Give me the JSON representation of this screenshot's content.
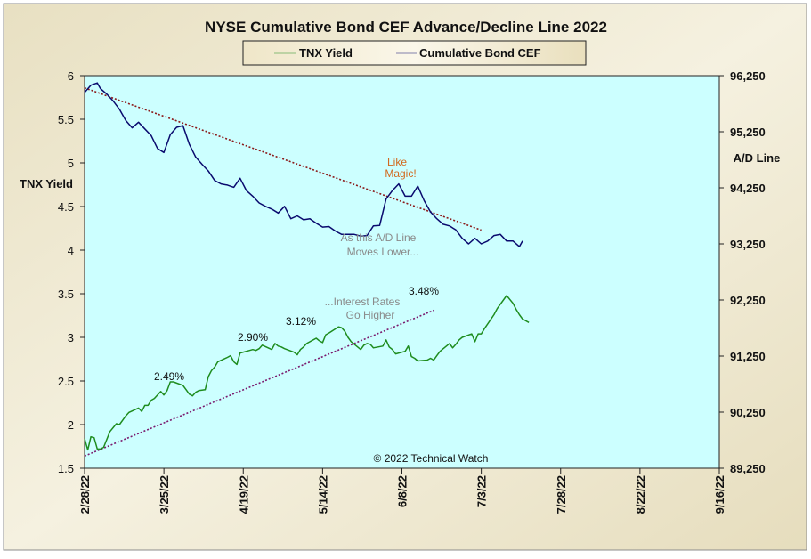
{
  "chart_data": {
    "type": "line",
    "title": "NYSE Cumulative  Bond CEF Advance/Decline  Line  2022",
    "y_left_label": "TNX  Yield",
    "y_right_label": "A/D Line",
    "x_ticks": [
      "2/28/22",
      "3/25/22",
      "4/19/22",
      "5/14/22",
      "6/8/22",
      "7/3/22",
      "7/28/22",
      "8/22/22",
      "9/16/22"
    ],
    "y_left_ticks": [
      "1.5",
      "2",
      "2.5",
      "3",
      "3.5",
      "4",
      "4.5",
      "5",
      "5.5",
      "6"
    ],
    "y_left_lim": [
      1.5,
      6
    ],
    "y_right_ticks": [
      "89,250",
      "90,250",
      "91,250",
      "92,250",
      "93,250",
      "94,250",
      "95,250",
      "96,250"
    ],
    "y_right_lim": [
      89250,
      96250
    ],
    "x_range_days": [
      0,
      200
    ],
    "legend": [
      "TNX Yield",
      "Cumulative Bond CEF"
    ],
    "legend_position": "top-center",
    "grid": false,
    "colors": {
      "tnx": "#1e8c1e",
      "cef": "#0a0a6e",
      "plot_bg": "#ccffff",
      "frame_bg": "#f1ecd6",
      "trend_upper": "#8b1a1a",
      "trend_lower": "#7a1a6e",
      "annotation_orange": "#d2691e",
      "annotation_gray": "#8a8a8a"
    },
    "series": [
      {
        "name": "TNX Yield",
        "axis": "left",
        "x_day": [
          0,
          1,
          2,
          3,
          4,
          5,
          6,
          8,
          10,
          11,
          12,
          13,
          14,
          17,
          18,
          19,
          20,
          21,
          22,
          24,
          25,
          26,
          27,
          28,
          31,
          32,
          33,
          34,
          35,
          36,
          38,
          39,
          40,
          41,
          42,
          45,
          46,
          47,
          48,
          49,
          52,
          53,
          54,
          55,
          56,
          59,
          60,
          61,
          62,
          63,
          66,
          67,
          68,
          69,
          70,
          73,
          74,
          75,
          76,
          77,
          80,
          81,
          82,
          83,
          84,
          87,
          88,
          89,
          90,
          91,
          94,
          95,
          96,
          97,
          98,
          101,
          102,
          103,
          104,
          105,
          108,
          109,
          110,
          111,
          112,
          115,
          116,
          117,
          118,
          119,
          122,
          123,
          124,
          125,
          126,
          129,
          130,
          131,
          133,
          135,
          136,
          137,
          138,
          140
        ],
        "values": [
          1.84,
          1.71,
          1.86,
          1.85,
          1.72,
          1.72,
          1.74,
          1.92,
          2.01,
          2.0,
          2.05,
          2.1,
          2.14,
          2.19,
          2.15,
          2.22,
          2.22,
          2.28,
          2.3,
          2.38,
          2.34,
          2.39,
          2.49,
          2.49,
          2.45,
          2.4,
          2.35,
          2.33,
          2.37,
          2.39,
          2.4,
          2.55,
          2.62,
          2.66,
          2.72,
          2.77,
          2.79,
          2.72,
          2.69,
          2.82,
          2.85,
          2.86,
          2.85,
          2.87,
          2.91,
          2.86,
          2.93,
          2.9,
          2.89,
          2.87,
          2.83,
          2.8,
          2.86,
          2.89,
          2.93,
          2.99,
          2.96,
          2.94,
          3.03,
          3.05,
          3.12,
          3.11,
          3.07,
          3.0,
          2.95,
          2.86,
          2.91,
          2.93,
          2.92,
          2.88,
          2.9,
          2.97,
          2.89,
          2.86,
          2.81,
          2.84,
          2.9,
          2.78,
          2.76,
          2.73,
          2.74,
          2.76,
          2.74,
          2.79,
          2.84,
          2.93,
          2.88,
          2.92,
          2.97,
          3.0,
          3.04,
          2.95,
          3.04,
          3.04,
          3.1,
          3.26,
          3.33,
          3.38,
          3.48,
          3.39,
          3.32,
          3.26,
          3.21,
          3.17
        ]
      },
      {
        "name": "Cumulative Bond CEF",
        "axis": "right",
        "x_day": [
          0,
          2,
          4,
          5,
          7,
          9,
          11,
          13,
          15,
          17,
          19,
          21,
          23,
          25,
          27,
          29,
          31,
          33,
          35,
          37,
          39,
          41,
          43,
          45,
          47,
          49,
          51,
          53,
          55,
          57,
          59,
          61,
          63,
          65,
          67,
          69,
          71,
          73,
          75,
          77,
          79,
          81,
          83,
          85,
          87,
          89,
          91,
          93,
          95,
          97,
          99,
          101,
          103,
          105,
          107,
          109,
          111,
          113,
          115,
          117,
          119,
          121,
          123,
          125,
          127,
          129,
          131,
          133,
          135,
          137,
          138
        ],
        "values": [
          95.95,
          96.08,
          96.12,
          96.02,
          95.92,
          95.8,
          95.65,
          95.45,
          95.32,
          95.42,
          95.3,
          95.18,
          94.95,
          94.88,
          95.2,
          95.33,
          95.36,
          95.03,
          94.8,
          94.67,
          94.55,
          94.38,
          94.32,
          94.3,
          94.26,
          94.42,
          94.2,
          94.1,
          93.98,
          93.92,
          93.87,
          93.8,
          93.92,
          93.7,
          93.75,
          93.68,
          93.7,
          93.62,
          93.55,
          93.56,
          93.48,
          93.42,
          93.42,
          93.42,
          93.39,
          93.4,
          93.57,
          93.58,
          94.05,
          94.2,
          94.32,
          94.1,
          94.1,
          94.28,
          94.02,
          93.82,
          93.7,
          93.6,
          93.57,
          93.5,
          93.35,
          93.25,
          93.35,
          93.25,
          93.3,
          93.4,
          93.42,
          93.3,
          93.3,
          93.2,
          93.3
        ]
      }
    ],
    "trendlines": [
      {
        "name": "upper",
        "axis": "left",
        "x_day": [
          0,
          125
        ],
        "values": [
          5.86,
          4.23
        ]
      },
      {
        "name": "lower",
        "axis": "left",
        "x_day": [
          0,
          110
        ],
        "values": [
          1.64,
          3.31
        ]
      }
    ],
    "annotations": {
      "like_magic_1": "Like",
      "like_magic_2": "Magic!",
      "moves_lower_1": "As this A/D Line",
      "moves_lower_2": "Moves  Lower...",
      "higher_1": "...Interest Rates",
      "higher_2": "Go Higher",
      "peak_1": "2.49%",
      "peak_2": "2.90%",
      "peak_3": "3.12%",
      "peak_4": "3.48%",
      "copyright": "© 2022 Technical  Watch"
    }
  }
}
